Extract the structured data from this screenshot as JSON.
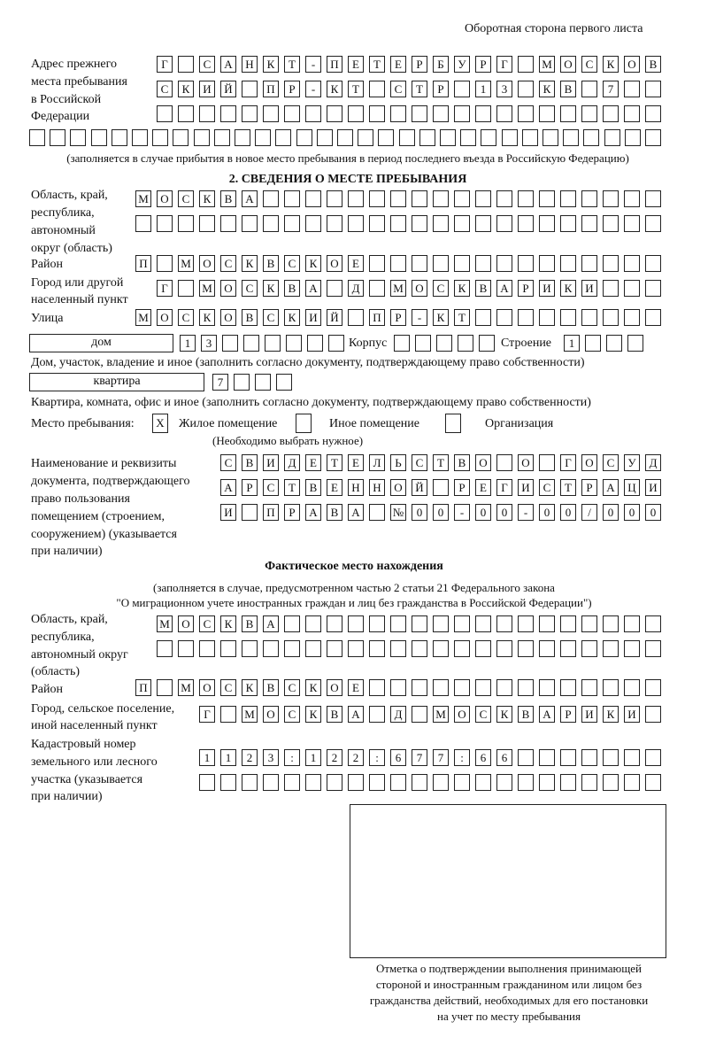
{
  "page_header": "Оборотная сторона первого листа",
  "prev_address": {
    "label": [
      "Адрес прежнего",
      "места пребывания",
      "в Российской",
      "Федерации"
    ],
    "rows": [
      [
        "Г",
        "",
        "С",
        "А",
        "Н",
        "К",
        "Т",
        "-",
        "П",
        "Е",
        "Т",
        "Е",
        "Р",
        "Б",
        "У",
        "Р",
        "Г",
        "",
        "М",
        "О",
        "С",
        "К",
        "О",
        "В"
      ],
      [
        "С",
        "К",
        "И",
        "Й",
        "",
        "П",
        "Р",
        "-",
        "К",
        "Т",
        "",
        "С",
        "Т",
        "Р",
        "",
        "1",
        "3",
        "",
        "К",
        "В",
        "",
        "7",
        "",
        ""
      ],
      [
        "",
        "",
        "",
        "",
        "",
        "",
        "",
        "",
        "",
        "",
        "",
        "",
        "",
        "",
        "",
        "",
        "",
        "",
        "",
        "",
        "",
        "",
        "",
        ""
      ],
      [
        "",
        "",
        "",
        "",
        "",
        "",
        "",
        "",
        "",
        "",
        "",
        "",
        "",
        "",
        "",
        "",
        "",
        "",
        "",
        "",
        "",
        "",
        "",
        "",
        "",
        "",
        "",
        "",
        "",
        "",
        ""
      ]
    ],
    "note": "(заполняется в случае прибытия в новое место пребывания в период последнего въезда в Российскую Федерацию)"
  },
  "section2": {
    "title": "2. СВЕДЕНИЯ О МЕСТЕ ПРЕБЫВАНИЯ",
    "region_label": [
      "Область, край,",
      "республика,",
      "автономный",
      "округ (область)"
    ],
    "region_rows": [
      [
        "М",
        "О",
        "С",
        "К",
        "В",
        "А",
        "",
        "",
        "",
        "",
        "",
        "",
        "",
        "",
        "",
        "",
        "",
        "",
        "",
        "",
        "",
        "",
        "",
        "",
        ""
      ],
      [
        "",
        "",
        "",
        "",
        "",
        "",
        "",
        "",
        "",
        "",
        "",
        "",
        "",
        "",
        "",
        "",
        "",
        "",
        "",
        "",
        "",
        "",
        "",
        "",
        ""
      ]
    ],
    "district_label": "Район",
    "district_row": [
      "П",
      "",
      "М",
      "О",
      "С",
      "К",
      "В",
      "С",
      "К",
      "О",
      "Е",
      "",
      "",
      "",
      "",
      "",
      "",
      "",
      "",
      "",
      "",
      "",
      "",
      "",
      ""
    ],
    "city_label": [
      "Город или другой",
      "населенный пункт"
    ],
    "city_row": [
      "Г",
      "",
      "М",
      "О",
      "С",
      "К",
      "В",
      "А",
      "",
      "Д",
      "",
      "М",
      "О",
      "С",
      "К",
      "В",
      "А",
      "Р",
      "И",
      "К",
      "И",
      "",
      "",
      ""
    ],
    "street_label": "Улица",
    "street_row": [
      "М",
      "О",
      "С",
      "К",
      "О",
      "В",
      "С",
      "К",
      "И",
      "Й",
      "",
      "П",
      "Р",
      "-",
      "К",
      "Т",
      "",
      "",
      "",
      "",
      "",
      "",
      "",
      "",
      ""
    ],
    "house": {
      "type": "дом",
      "number": [
        "1",
        "3",
        "",
        "",
        "",
        "",
        "",
        ""
      ],
      "korpus_label": "Корпус",
      "korpus": [
        "",
        "",
        "",
        "",
        ""
      ],
      "stroenie_label": "Строение",
      "stroenie": [
        "1",
        "",
        "",
        ""
      ],
      "note": "Дом, участок, владение и иное (заполнить согласно документу, подтверждающему право собственности)"
    },
    "flat": {
      "type": "квартира",
      "number": [
        "7",
        "",
        "",
        ""
      ],
      "note": "Квартира, комната, офис и иное (заполнить согласно документу, подтверждающему право собственности)"
    },
    "stay_place": {
      "label": "Место пребывания:",
      "options": [
        {
          "mark": "X",
          "label": "Жилое помещение"
        },
        {
          "mark": "",
          "label": "Иное помещение"
        },
        {
          "mark": "",
          "label": "Организация"
        }
      ],
      "hint": "(Необходимо выбрать нужное)"
    },
    "document_label": [
      "Наименование и реквизиты",
      "документа, подтверждающего",
      "право пользования",
      "помещением (строением,",
      "сооружением) (указывается",
      "при наличии)"
    ],
    "document_rows": [
      [
        "С",
        "В",
        "И",
        "Д",
        "Е",
        "Т",
        "Е",
        "Л",
        "Ь",
        "С",
        "Т",
        "В",
        "О",
        "",
        "О",
        "",
        "Г",
        "О",
        "С",
        "У",
        "Д"
      ],
      [
        "А",
        "Р",
        "С",
        "Т",
        "В",
        "Е",
        "Н",
        "Н",
        "О",
        "Й",
        "",
        "Р",
        "Е",
        "Г",
        "И",
        "С",
        "Т",
        "Р",
        "А",
        "Ц",
        "И"
      ],
      [
        "И",
        "",
        "П",
        "Р",
        "А",
        "В",
        "А",
        "",
        "№",
        "0",
        "0",
        "-",
        "0",
        "0",
        "-",
        "0",
        "0",
        "/",
        "0",
        "0",
        "0"
      ]
    ]
  },
  "actual": {
    "title": "Фактическое место нахождения",
    "subtitle": [
      "(заполняется в случае, предусмотренном частью 2 статьи 21 Федерального закона",
      "\"О миграционном учете иностранных граждан и лиц без гражданства в Российской Федерации\")"
    ],
    "region_label": [
      "Область, край,",
      "республика,",
      "автономный округ",
      "(область)"
    ],
    "region_rows": [
      [
        "М",
        "О",
        "С",
        "К",
        "В",
        "А",
        "",
        "",
        "",
        "",
        "",
        "",
        "",
        "",
        "",
        "",
        "",
        "",
        "",
        "",
        "",
        "",
        "",
        ""
      ],
      [
        "",
        "",
        "",
        "",
        "",
        "",
        "",
        "",
        "",
        "",
        "",
        "",
        "",
        "",
        "",
        "",
        "",
        "",
        "",
        "",
        "",
        "",
        "",
        ""
      ]
    ],
    "district_label": "Район",
    "district_row": [
      "П",
      "",
      "М",
      "О",
      "С",
      "К",
      "В",
      "С",
      "К",
      "О",
      "Е",
      "",
      "",
      "",
      "",
      "",
      "",
      "",
      "",
      "",
      "",
      "",
      "",
      "",
      ""
    ],
    "city_label": [
      "Город, сельское поселение,",
      "иной населенный пункт"
    ],
    "city_row": [
      "Г",
      "",
      "М",
      "О",
      "С",
      "К",
      "В",
      "А",
      "",
      "Д",
      "",
      "М",
      "О",
      "С",
      "К",
      "В",
      "А",
      "Р",
      "И",
      "К",
      "И",
      ""
    ],
    "cadastral_label": [
      "Кадастровый номер",
      "земельного или лесного",
      "участка (указывается",
      "при наличии)"
    ],
    "cadastral_rows": [
      [
        "1",
        "1",
        "2",
        "3",
        ":",
        "1",
        "2",
        "2",
        ":",
        "6",
        "7",
        "7",
        ":",
        "6",
        "6",
        "",
        "",
        "",
        "",
        "",
        "",
        ""
      ],
      [
        "",
        "",
        "",
        "",
        "",
        "",
        "",
        "",
        "",
        "",
        "",
        "",
        "",
        "",
        "",
        "",
        "",
        "",
        "",
        "",
        "",
        ""
      ]
    ]
  },
  "stamp_caption": [
    "Отметка о подтверждении выполнения принимающей",
    "стороной и иностранным гражданином или лицом без",
    "гражданства действий, необходимых для его постановки",
    "на учет по месту пребывания"
  ]
}
